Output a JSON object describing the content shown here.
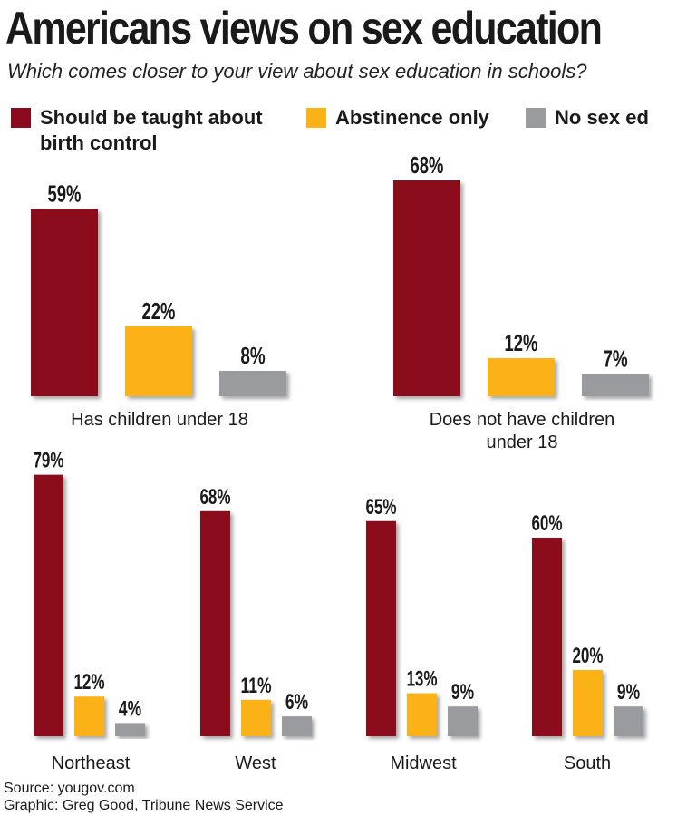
{
  "title": "Americans views on sex education",
  "subtitle": "Which comes closer to your view about sex education in schools?",
  "legend": [
    {
      "label_line1": "Should be taught about",
      "label_line2": "birth control",
      "color": "#8b0a1e"
    },
    {
      "label_line1": "Abstinence only",
      "label_line2": "",
      "color": "#fbb216"
    },
    {
      "label_line1": "No sex ed",
      "label_line2": "",
      "color": "#9a9b9e"
    }
  ],
  "chart_data": [
    {
      "type": "bar",
      "group": "Has children under 18",
      "label_lines": [
        "Has children under 18"
      ],
      "series": [
        "Should be taught about birth control",
        "Abstinence only",
        "No sex ed"
      ],
      "values": [
        59,
        22,
        8
      ],
      "labels": [
        "59%",
        "22%",
        "8%"
      ]
    },
    {
      "type": "bar",
      "group": "Does not have children under 18",
      "label_lines": [
        "Does not have children",
        "under 18"
      ],
      "series": [
        "Should be taught about birth control",
        "Abstinence only",
        "No sex ed"
      ],
      "values": [
        68,
        12,
        7
      ],
      "labels": [
        "68%",
        "12%",
        "7%"
      ]
    },
    {
      "type": "bar",
      "group": "Northeast",
      "label_lines": [
        "Northeast"
      ],
      "series": [
        "Should be taught about birth control",
        "Abstinence only",
        "No sex ed"
      ],
      "values": [
        79,
        12,
        4
      ],
      "labels": [
        "79%",
        "12%",
        "4%"
      ]
    },
    {
      "type": "bar",
      "group": "West",
      "label_lines": [
        "West"
      ],
      "series": [
        "Should be taught about birth control",
        "Abstinence only",
        "No sex ed"
      ],
      "values": [
        68,
        11,
        6
      ],
      "labels": [
        "68%",
        "11%",
        "6%"
      ]
    },
    {
      "type": "bar",
      "group": "Midwest",
      "label_lines": [
        "Midwest"
      ],
      "series": [
        "Should be taught about birth control",
        "Abstinence only",
        "No sex ed"
      ],
      "values": [
        65,
        13,
        9
      ],
      "labels": [
        "65%",
        "13%",
        "9%"
      ]
    },
    {
      "type": "bar",
      "group": "South",
      "label_lines": [
        "South"
      ],
      "series": [
        "Should be taught about birth control",
        "Abstinence only",
        "No sex ed"
      ],
      "values": [
        60,
        20,
        9
      ],
      "labels": [
        "60%",
        "20%",
        "9%"
      ]
    }
  ],
  "footer": {
    "source": "Source: yougov.com",
    "credit": "Graphic: Greg Good, Tribune News Service"
  }
}
